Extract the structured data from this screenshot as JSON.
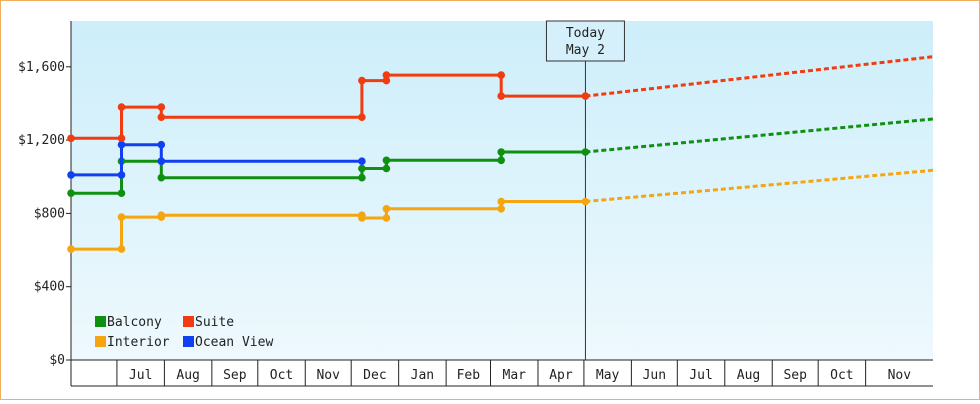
{
  "chart_data": {
    "type": "line",
    "title": "",
    "xlabel": "",
    "ylabel": "",
    "ylim": [
      0,
      1850
    ],
    "yticks": [
      0,
      400,
      800,
      1200,
      1600
    ],
    "ytick_labels": [
      "$0",
      "$400",
      "$800",
      "$1,200",
      "$1,600"
    ],
    "xlim": [
      "2023-06-01",
      "2024-12-15"
    ],
    "month_labels": [
      {
        "date": "2023-07-01",
        "label": "Jul"
      },
      {
        "date": "2023-08-01",
        "label": "Aug"
      },
      {
        "date": "2023-09-01",
        "label": "Sep"
      },
      {
        "date": "2023-10-01",
        "label": "Oct"
      },
      {
        "date": "2023-11-01",
        "label": "Nov"
      },
      {
        "date": "2023-12-01",
        "label": "Dec"
      },
      {
        "date": "2024-01-01",
        "label": "Jan"
      },
      {
        "date": "2024-02-01",
        "label": "Feb"
      },
      {
        "date": "2024-03-01",
        "label": "Mar"
      },
      {
        "date": "2024-04-01",
        "label": "Apr"
      },
      {
        "date": "2024-05-01",
        "label": "May"
      },
      {
        "date": "2024-06-01",
        "label": "Jun"
      },
      {
        "date": "2024-07-01",
        "label": "Jul"
      },
      {
        "date": "2024-08-01",
        "label": "Aug"
      },
      {
        "date": "2024-09-01",
        "label": "Sep"
      },
      {
        "date": "2024-10-01",
        "label": "Oct"
      },
      {
        "date": "2024-11-01",
        "label": "Nov"
      }
    ],
    "today": {
      "date": "2024-05-02",
      "line1": "Today",
      "line2": "May 2"
    },
    "legend_position": "bottom-left",
    "grid": false,
    "series": [
      {
        "name": "Balcony",
        "color": "#109010",
        "points": [
          [
            "2023-06-01",
            910
          ],
          [
            "2023-07-04",
            910
          ],
          [
            "2023-07-04",
            1085
          ],
          [
            "2023-07-30",
            1085
          ],
          [
            "2023-07-30",
            995
          ],
          [
            "2023-12-08",
            995
          ],
          [
            "2023-12-08",
            1045
          ],
          [
            "2023-12-24",
            1045
          ],
          [
            "2023-12-24",
            1090
          ],
          [
            "2024-03-08",
            1090
          ],
          [
            "2024-03-08",
            1135
          ],
          [
            "2024-05-02",
            1135
          ]
        ],
        "forecast": [
          [
            "2024-05-02",
            1135
          ],
          [
            "2024-12-15",
            1315
          ]
        ]
      },
      {
        "name": "Suite",
        "color": "#f03c10",
        "points": [
          [
            "2023-06-01",
            1210
          ],
          [
            "2023-07-04",
            1210
          ],
          [
            "2023-07-04",
            1380
          ],
          [
            "2023-07-30",
            1380
          ],
          [
            "2023-07-30",
            1325
          ],
          [
            "2023-12-08",
            1325
          ],
          [
            "2023-12-08",
            1525
          ],
          [
            "2023-12-24",
            1525
          ],
          [
            "2023-12-24",
            1555
          ],
          [
            "2024-03-08",
            1555
          ],
          [
            "2024-03-08",
            1440
          ],
          [
            "2024-05-02",
            1440
          ]
        ],
        "forecast": [
          [
            "2024-05-02",
            1440
          ],
          [
            "2024-12-15",
            1655
          ]
        ]
      },
      {
        "name": "Interior",
        "color": "#f5a510",
        "points": [
          [
            "2023-06-01",
            605
          ],
          [
            "2023-07-04",
            605
          ],
          [
            "2023-07-04",
            780
          ],
          [
            "2023-07-30",
            780
          ],
          [
            "2023-07-30",
            790
          ],
          [
            "2023-12-08",
            790
          ],
          [
            "2023-12-08",
            775
          ],
          [
            "2023-12-24",
            775
          ],
          [
            "2023-12-24",
            825
          ],
          [
            "2024-03-08",
            825
          ],
          [
            "2024-03-08",
            865
          ],
          [
            "2024-05-02",
            865
          ]
        ],
        "forecast": [
          [
            "2024-05-02",
            865
          ],
          [
            "2024-12-15",
            1035
          ]
        ]
      },
      {
        "name": "Ocean View",
        "color": "#1040f0",
        "points": [
          [
            "2023-06-01",
            1010
          ],
          [
            "2023-07-04",
            1010
          ],
          [
            "2023-07-04",
            1175
          ],
          [
            "2023-07-30",
            1175
          ],
          [
            "2023-07-30",
            1085
          ],
          [
            "2023-12-08",
            1085
          ]
        ],
        "forecast": []
      }
    ]
  }
}
